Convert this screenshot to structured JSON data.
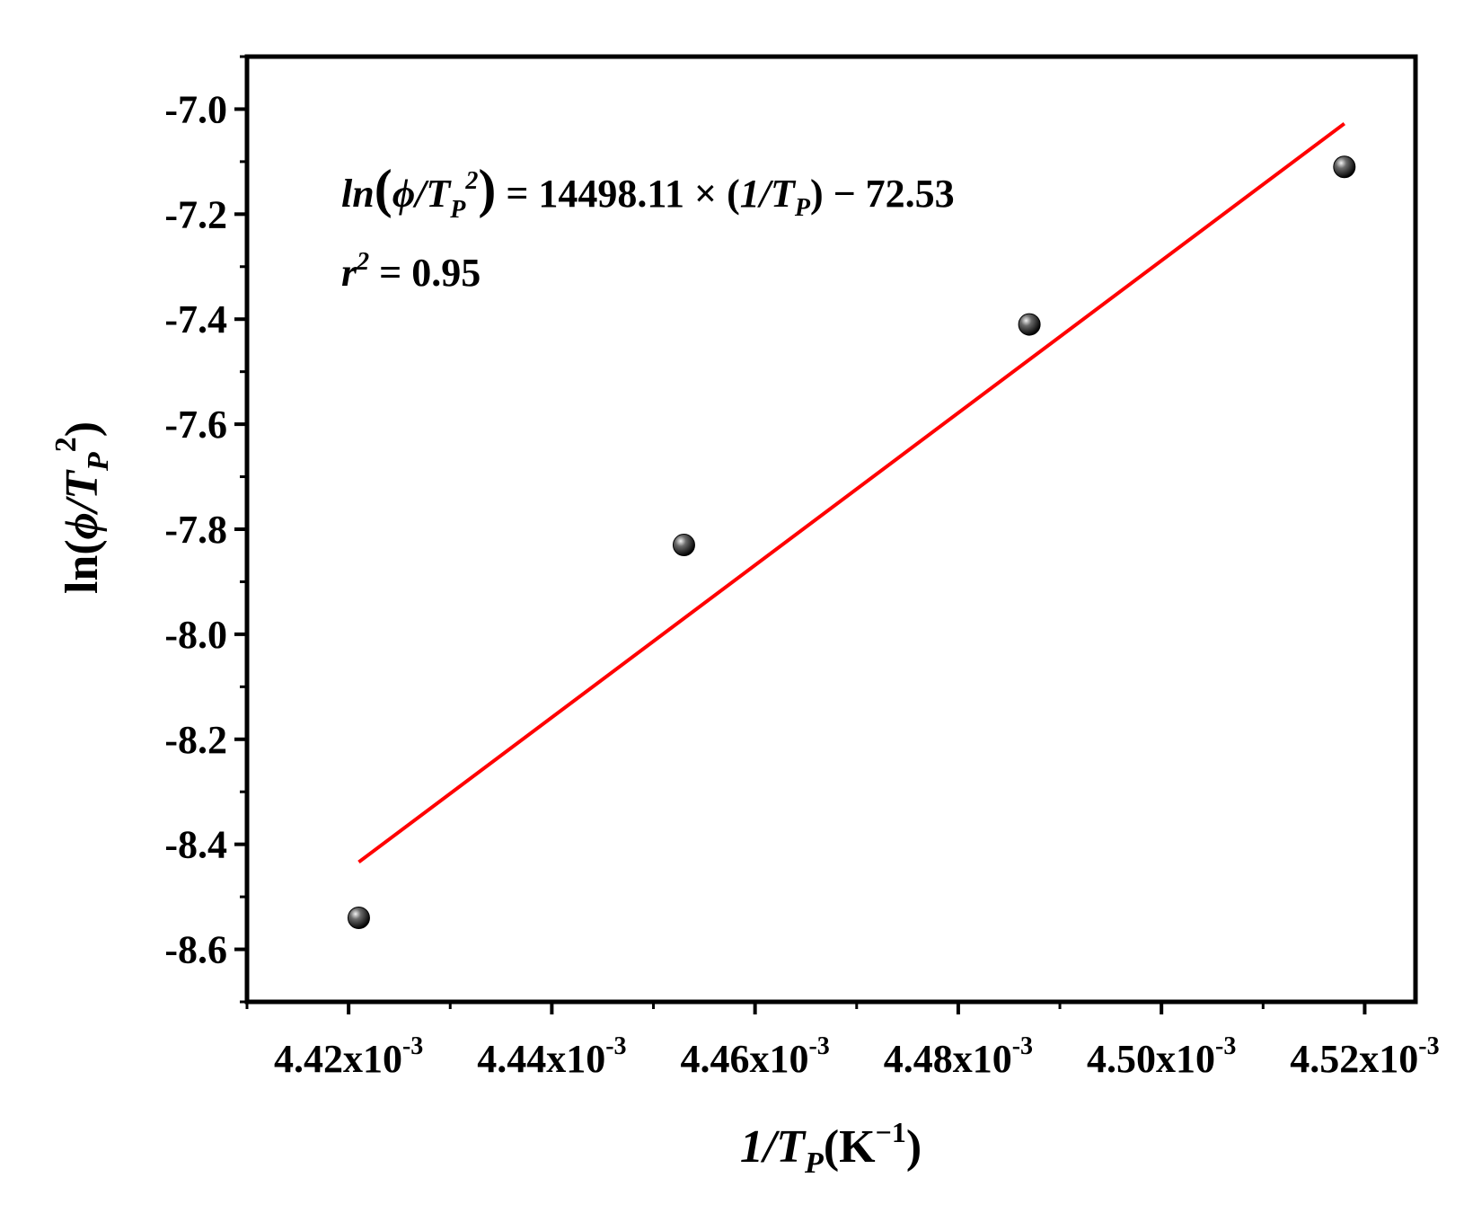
{
  "chart_data": {
    "type": "scatter",
    "xlabel": {
      "main": "1/T",
      "sub": "P",
      "unit_open": "(K",
      "unit_sup": "−1",
      "unit_close": ")"
    },
    "ylabel": {
      "main": "ln(",
      "phi": "ϕ",
      "slash": "/T",
      "sub": "P",
      "sup": "2",
      "close": ")"
    },
    "xlim": [
      0.00441,
      0.004525
    ],
    "ylim": [
      -8.7,
      -6.9
    ],
    "x_ticks": [
      {
        "value": 0.00442,
        "mantissa": "4.42x10",
        "exp": "-3"
      },
      {
        "value": 0.00444,
        "mantissa": "4.44x10",
        "exp": "-3"
      },
      {
        "value": 0.00446,
        "mantissa": "4.46x10",
        "exp": "-3"
      },
      {
        "value": 0.00448,
        "mantissa": "4.48x10",
        "exp": "-3"
      },
      {
        "value": 0.0045,
        "mantissa": "4.50x10",
        "exp": "-3"
      },
      {
        "value": 0.00452,
        "mantissa": "4.52x10",
        "exp": "-3"
      }
    ],
    "x_minor_ticks": [
      0.00441,
      0.00443,
      0.00445,
      0.00447,
      0.00449,
      0.00451
    ],
    "y_ticks": [
      {
        "value": -7.0,
        "label": "-7.0"
      },
      {
        "value": -7.2,
        "label": "-7.2"
      },
      {
        "value": -7.4,
        "label": "-7.4"
      },
      {
        "value": -7.6,
        "label": "-7.6"
      },
      {
        "value": -7.8,
        "label": "-7.8"
      },
      {
        "value": -8.0,
        "label": "-8.0"
      },
      {
        "value": -8.2,
        "label": "-8.2"
      },
      {
        "value": -8.4,
        "label": "-8.4"
      },
      {
        "value": -8.6,
        "label": "-8.6"
      }
    ],
    "y_minor_ticks": [
      -6.9,
      -7.1,
      -7.3,
      -7.5,
      -7.7,
      -7.9,
      -8.1,
      -8.3,
      -8.5,
      -8.7
    ],
    "points": [
      {
        "x": 0.004421,
        "y": -8.54
      },
      {
        "x": 0.004453,
        "y": -7.83
      },
      {
        "x": 0.004487,
        "y": -7.41
      },
      {
        "x": 0.004518,
        "y": -7.11
      }
    ],
    "fit": {
      "slope": 14498.11,
      "intercept": -72.53,
      "x_range": [
        0.004421,
        0.004518
      ],
      "color": "#ff0000"
    },
    "equation": {
      "lhs_ln": "ln",
      "lhs_open": "(",
      "lhs_phi": "ϕ",
      "lhs_slash": "/T",
      "lhs_sub": "P",
      "lhs_sup": "2",
      "lhs_close": ")",
      "middle": " = 14498.11 × (",
      "inv": "1/T",
      "inv_sub": "P",
      "tail": ") − 72.53"
    },
    "r2": {
      "r": "r",
      "sup": "2",
      "rest": " = 0.95"
    },
    "marker_color": "#000000",
    "grid": false,
    "legend": "none"
  }
}
